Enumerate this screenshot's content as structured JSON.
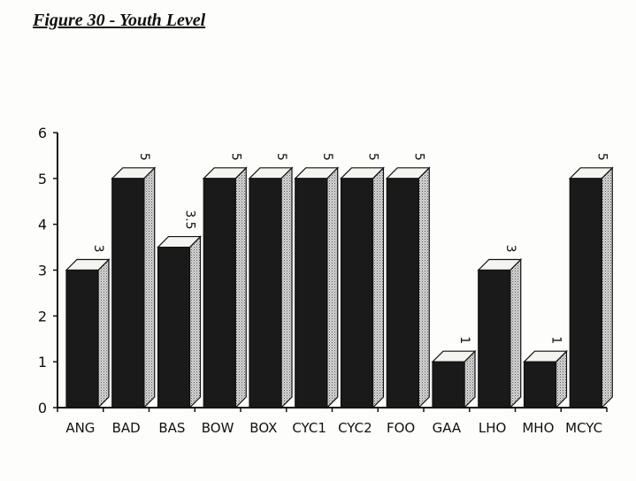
{
  "chart_data": {
    "type": "bar",
    "title": "Figure 30 - Youth Level",
    "xlabel": "",
    "ylabel": "",
    "ylim": [
      0,
      6
    ],
    "yticks": [
      0,
      1,
      2,
      3,
      4,
      5,
      6
    ],
    "grid": false,
    "categories": [
      "ANG",
      "BAD",
      "BAS",
      "BOW",
      "BOX",
      "CYC1",
      "CYC2",
      "FOO",
      "GAA",
      "LHO",
      "MHO",
      "MCYC"
    ],
    "values": [
      3,
      5,
      3.5,
      5,
      5,
      5,
      5,
      5,
      1,
      3,
      1,
      5
    ],
    "data_labels": [
      "3",
      "5",
      "3.5",
      "5",
      "5",
      "5",
      "5",
      "5",
      "1",
      "3",
      "1",
      "5"
    ],
    "colors": {
      "front": "#1a1a1a",
      "top": "#f4f4f0",
      "side": "#bdbdbd",
      "axis": "#111111"
    }
  }
}
